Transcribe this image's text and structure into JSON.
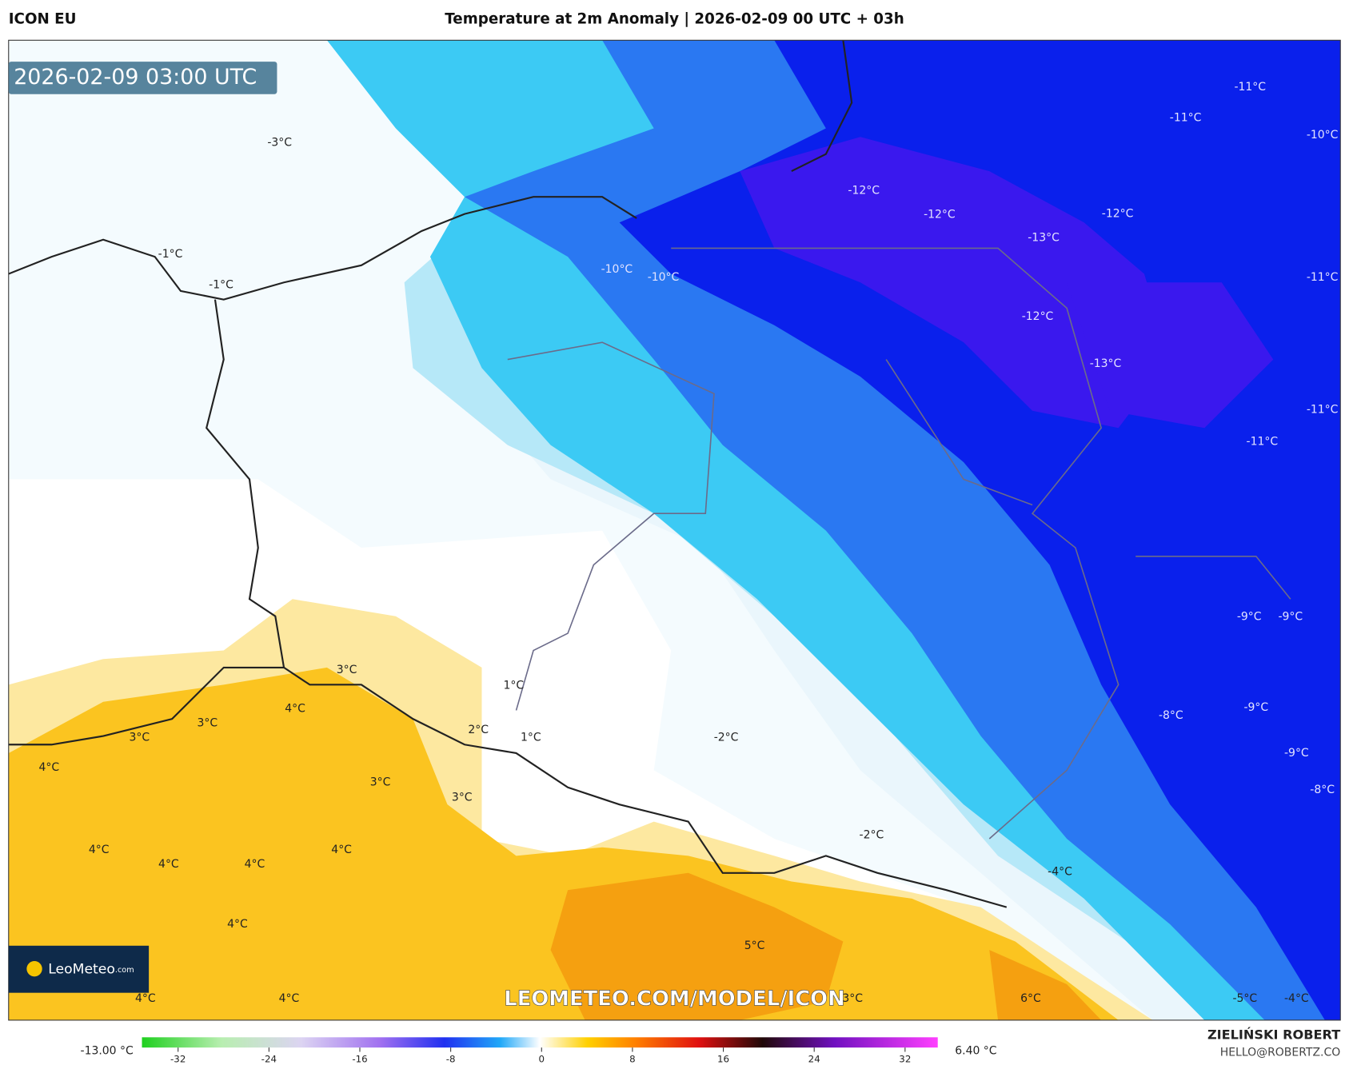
{
  "header": {
    "model": "ICON EU",
    "title": "Temperature at 2m Anomaly | 2026-02-09 00 UTC + 03h"
  },
  "map": {
    "timestamp": "2026-02-09 03:00 UTC",
    "watermark": "LEOMETEO.COM/MODEL/ICON",
    "logo_name": "LeoMeteo",
    "logo_domain": ".com",
    "labels": [
      "-3°C",
      "-1°C",
      "-1°C",
      "-10°C",
      "-10°C",
      "-12°C",
      "-12°C",
      "-13°C",
      "-12°C",
      "-11°C",
      "-11°C",
      "-10°C",
      "-11°C",
      "-12°C",
      "-13°C",
      "-11°C",
      "-11°C",
      "-9°C",
      "-9°C",
      "-8°C",
      "-9°C",
      "-9°C",
      "-8°C",
      "-2°C",
      "-2°C",
      "-4°C",
      "-5°C",
      "-4°C",
      "3°C",
      "1°C",
      "4°C",
      "3°C",
      "3°C",
      "2°C",
      "1°C",
      "4°C",
      "3°C",
      "3°C",
      "4°C",
      "4°C",
      "4°C",
      "4°C",
      "4°C",
      "5°C",
      "4°C",
      "4°C",
      "3°C",
      "6°C"
    ]
  },
  "colorbar": {
    "min_label": "-13.00 °C",
    "max_label": "6.40 °C",
    "ticks": [
      -32,
      -24,
      -16,
      -8,
      0,
      8,
      16,
      24,
      32
    ]
  },
  "footer": {
    "author": "ZIELIŃSKI ROBERT",
    "email": "HELLO@ROBERTZ.CO"
  }
}
